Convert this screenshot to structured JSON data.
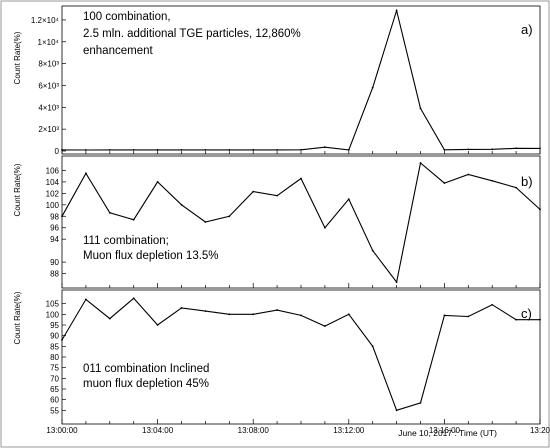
{
  "chart_data": [
    {
      "type": "line",
      "panel_label": "a)",
      "ylabel": "Count Rate(%)",
      "ylim": [
        0,
        13000
      ],
      "yticks": [
        0,
        2000,
        4000,
        6000,
        8000,
        10000,
        12000
      ],
      "ytick_labels": [
        "0",
        "2×10³",
        "4×10³",
        "6×10³",
        "8×10³",
        "1×10⁴",
        "1.2×10⁴"
      ],
      "annotation": [
        "100 combination,",
        "2.5 mln. additional TGE particles, 12,860%",
        "enhancement"
      ],
      "x": [
        "13:00",
        "13:01",
        "13:02",
        "13:03",
        "13:04",
        "13:05",
        "13:06",
        "13:07",
        "13:08",
        "13:09",
        "13:10",
        "13:11",
        "13:12",
        "13:13",
        "13:14",
        "13:15",
        "13:16",
        "13:17",
        "13:18",
        "13:19",
        "13:20"
      ],
      "values": [
        100,
        95,
        100,
        105,
        98,
        102,
        100,
        97,
        103,
        100,
        110,
        350,
        100,
        5800,
        12860,
        3900,
        110,
        150,
        160,
        250,
        240
      ]
    },
    {
      "type": "line",
      "panel_label": "b)",
      "ylabel": "Count Rate(%)",
      "ylim": [
        86,
        108
      ],
      "yticks": [
        88,
        90,
        94,
        96,
        98,
        100,
        102,
        104,
        106
      ],
      "ytick_labels": [
        "88",
        "90",
        "94",
        "96",
        "98",
        "100",
        "102",
        "104",
        "106"
      ],
      "annotation": [
        "111 combination;",
        "Muon flux depletion 13.5%"
      ],
      "x": [
        "13:00",
        "13:01",
        "13:02",
        "13:03",
        "13:04",
        "13:05",
        "13:06",
        "13:07",
        "13:08",
        "13:09",
        "13:10",
        "13:11",
        "13:12",
        "13:13",
        "13:14",
        "13:15",
        "13:16",
        "13:17",
        "13:18",
        "13:19",
        "13:20"
      ],
      "values": [
        98,
        105.5,
        98.6,
        97.4,
        104,
        100,
        97,
        98,
        102.3,
        101.6,
        104.6,
        96,
        101,
        92,
        86.5,
        107.3,
        103.8,
        105.3,
        104.2,
        103,
        99.2
      ]
    },
    {
      "type": "line",
      "panel_label": "c)",
      "ylabel": "Count Rate(%)",
      "ylim": [
        50,
        110
      ],
      "yticks": [
        55,
        60,
        65,
        70,
        75,
        80,
        85,
        90,
        95,
        100,
        105
      ],
      "ytick_labels": [
        "55",
        "60",
        "65",
        "70",
        "75",
        "80",
        "85",
        "90",
        "95",
        "100",
        "105"
      ],
      "annotation": [
        "011 combination Inclined",
        "muon flux depletion 45%"
      ],
      "x": [
        "13:00",
        "13:01",
        "13:02",
        "13:03",
        "13:04",
        "13:05",
        "13:06",
        "13:07",
        "13:08",
        "13:09",
        "13:10",
        "13:11",
        "13:12",
        "13:13",
        "13:14",
        "13:15",
        "13:16",
        "13:17",
        "13:18",
        "13:19",
        "13:20"
      ],
      "values": [
        88,
        107,
        98,
        107.5,
        95,
        103,
        101.5,
        100,
        100,
        102,
        99.5,
        94.5,
        100,
        85,
        55,
        58.5,
        99.5,
        99,
        104.5,
        97.5,
        97.5
      ]
    }
  ],
  "x_axis": {
    "range_minutes": [
      0,
      20
    ],
    "tick_labels": [
      "13:00:00",
      "13:04:00",
      "13:08:00",
      "13:12:00",
      "13:16:00",
      "13:20"
    ],
    "tick_minutes": [
      0,
      4,
      8,
      12,
      16,
      20
    ],
    "caption": "June 10, 2017 : Time (UT)"
  },
  "colors": {
    "line": "#000000",
    "frame": "#000000",
    "background": "#ffffff"
  }
}
